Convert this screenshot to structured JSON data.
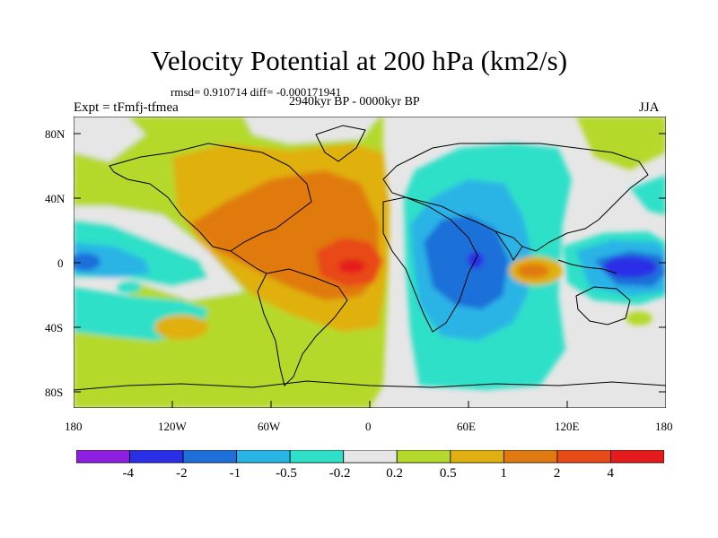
{
  "title": "Velocity Potential at 200 hPa (km2/s)",
  "stats": "rmsd= 0.910714  diff= -0.000171941",
  "experiment": "Expt = tFmfj-tfmea",
  "period": "2940kyr BP - 0000kyr BP",
  "season": "JJA",
  "lat_labels": [
    "80N",
    "40N",
    "0",
    "40S",
    "80S"
  ],
  "lon_labels": [
    "180",
    "120W",
    "60W",
    "0",
    "60E",
    "120E",
    "180"
  ],
  "colorbar": {
    "labels": [
      "-4",
      "-2",
      "-1",
      "-0.5",
      "-0.2",
      "0.2",
      "0.5",
      "1",
      "2",
      "4"
    ],
    "colors": [
      "#8e1fe0",
      "#2a2ee6",
      "#1e6fd9",
      "#29b4e6",
      "#2fe0c8",
      "#e6e6e6",
      "#b5d92b",
      "#e0b010",
      "#e07a10",
      "#e84a18",
      "#e61a1a"
    ]
  },
  "colors": {
    "background": "#e6e6e6",
    "coast": "#000000"
  }
}
